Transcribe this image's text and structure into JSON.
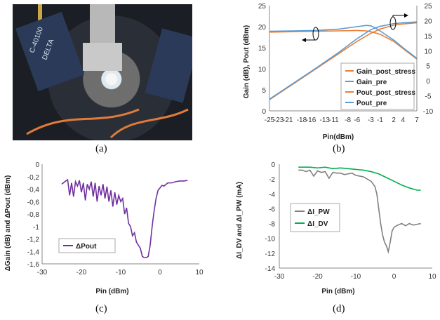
{
  "figure": {
    "captions": [
      "(a)",
      "(b)",
      "(c)",
      "(d)"
    ],
    "photo_label_1": "C-40100",
    "photo_label_2": "DELTA"
  },
  "colors": {
    "orange": "#ed7d31",
    "blue": "#5b9bd5",
    "purple": "#7030a0",
    "gray": "#808080",
    "green": "#00b050"
  },
  "chart_data": [
    {
      "panel": "b",
      "type": "line",
      "xlabel": "Pin(dBm)",
      "ylabel": "Gain (dB), Pout (dBm)",
      "x_ticks": [
        "-25",
        "-23",
        "-21",
        "-18",
        "-16",
        "-13",
        "-11",
        "-8",
        "-6",
        "-3",
        "-1",
        "2",
        "4",
        "7"
      ],
      "xlim": [
        -25,
        7
      ],
      "ylim_left": [
        0,
        25
      ],
      "ylim_right": [
        -10,
        25
      ],
      "left_ticks": [
        "0",
        "5",
        "10",
        "15",
        "20",
        "25"
      ],
      "right_ticks": [
        "-10",
        "-5",
        "0",
        "5",
        "10",
        "15",
        "20",
        "25"
      ],
      "series": [
        {
          "name": "Gain_post_stress",
          "axis": "left",
          "color": "orange",
          "x": [
            -25,
            -20,
            -15,
            -10,
            -6,
            -4,
            -3,
            -1,
            2,
            4,
            7
          ],
          "y": [
            18.7,
            18.8,
            18.9,
            19.0,
            19.1,
            19.0,
            18.8,
            18.2,
            16.5,
            14.8,
            12.3
          ]
        },
        {
          "name": "Gain_pre",
          "axis": "left",
          "color": "blue",
          "x": [
            -25,
            -20,
            -15,
            -10,
            -6,
            -4,
            -3,
            -2,
            -1,
            2,
            4,
            7
          ],
          "y": [
            18.9,
            19.0,
            19.1,
            19.4,
            20.0,
            20.3,
            20.2,
            19.7,
            19.0,
            16.8,
            15.0,
            12.5
          ]
        },
        {
          "name": "Pout_post_stress",
          "axis": "right",
          "color": "orange",
          "x": [
            -25,
            -20,
            -15,
            -10,
            -6,
            -3,
            -1,
            2,
            4,
            7
          ],
          "y": [
            -6.3,
            -1.2,
            3.9,
            9.0,
            13.1,
            15.8,
            17.2,
            18.5,
            18.9,
            19.3
          ]
        },
        {
          "name": "Pout_pre",
          "axis": "right",
          "color": "blue",
          "x": [
            -25,
            -20,
            -15,
            -10,
            -6,
            -3,
            -1,
            2,
            4,
            7
          ],
          "y": [
            -6.1,
            -1.0,
            4.1,
            9.4,
            14.0,
            17.0,
            18.1,
            19.0,
            19.3,
            19.6
          ]
        }
      ],
      "legend": "bottom-right"
    },
    {
      "panel": "c",
      "type": "line",
      "xlabel": "Pin (dBm)",
      "ylabel": "ΔGain (dB) and ΔPout (dBm)",
      "xlim": [
        -30,
        10
      ],
      "ylim": [
        -1.6,
        0
      ],
      "x_ticks": [
        "-30",
        "-20",
        "-10",
        "0",
        "10"
      ],
      "y_ticks": [
        "0",
        "-0,2",
        "-0,4",
        "-0,6",
        "-0,8",
        "-1",
        "-1,2",
        "-1,4",
        "-1,6"
      ],
      "series": [
        {
          "name": "ΔPout",
          "color": "purple",
          "x": [
            -25,
            -24,
            -23.5,
            -23,
            -22.5,
            -22,
            -21.5,
            -21,
            -20.5,
            -20,
            -19.5,
            -19,
            -18.5,
            -18,
            -17.5,
            -17,
            -16.5,
            -16,
            -15.5,
            -15,
            -14.5,
            -14,
            -13.5,
            -13,
            -12.5,
            -12,
            -11.5,
            -11,
            -10.5,
            -10,
            -9.5,
            -9,
            -8.5,
            -8,
            -7.5,
            -7,
            -6.5,
            -6,
            -5.5,
            -5,
            -4.5,
            -4,
            -3.5,
            -3,
            -2.5,
            -2,
            -1.5,
            -1,
            -0.5,
            0,
            0.5,
            1,
            2,
            3,
            4,
            5,
            6,
            7
          ],
          "y": [
            -0.32,
            -0.27,
            -0.25,
            -0.5,
            -0.3,
            -0.52,
            -0.28,
            -0.35,
            -0.26,
            -0.45,
            -0.3,
            -0.58,
            -0.32,
            -0.4,
            -0.28,
            -0.52,
            -0.3,
            -0.6,
            -0.35,
            -0.5,
            -0.32,
            -0.55,
            -0.36,
            -0.6,
            -0.42,
            -0.68,
            -0.45,
            -0.65,
            -0.5,
            -0.6,
            -0.55,
            -0.8,
            -0.7,
            -0.95,
            -1.0,
            -1.15,
            -1.1,
            -1.25,
            -1.3,
            -1.35,
            -1.48,
            -1.5,
            -1.5,
            -1.48,
            -1.3,
            -1.0,
            -0.75,
            -0.55,
            -0.42,
            -0.38,
            -0.34,
            -0.35,
            -0.3,
            -0.3,
            -0.28,
            -0.27,
            -0.27,
            -0.26
          ]
        }
      ],
      "legend": "bottom-left"
    },
    {
      "panel": "d",
      "type": "line",
      "xlabel": "Pin (dBm)",
      "ylabel": "ΔI_DV and ΔI_PW (mA)",
      "xlim": [
        -30,
        10
      ],
      "ylim": [
        -14,
        0
      ],
      "x_ticks": [
        "-30",
        "-20",
        "-10",
        "0",
        "10"
      ],
      "y_ticks": [
        "0",
        "-2",
        "-4",
        "-6",
        "-8",
        "-10",
        "-12",
        "-14"
      ],
      "series": [
        {
          "name": "ΔI_PW",
          "color": "gray",
          "x": [
            -25,
            -24,
            -23,
            -22,
            -21,
            -20,
            -19,
            -18,
            -17,
            -16,
            -15,
            -14,
            -13,
            -12,
            -11,
            -10,
            -9,
            -8,
            -7,
            -6,
            -5,
            -4.5,
            -4,
            -3.5,
            -3,
            -2.5,
            -2,
            -1.5,
            -1,
            -0.5,
            0,
            1,
            2,
            3,
            4,
            5,
            6,
            7
          ],
          "y": [
            -0.8,
            -0.8,
            -1.0,
            -0.8,
            -1.6,
            -0.9,
            -1.1,
            -1.0,
            -1.9,
            -1.1,
            -1.2,
            -1.2,
            -1.4,
            -1.3,
            -1.2,
            -1.5,
            -1.6,
            -1.7,
            -2.0,
            -2.3,
            -3.0,
            -4.0,
            -6.0,
            -8.0,
            -9.5,
            -10.5,
            -11.0,
            -11.8,
            -10.5,
            -9.0,
            -8.5,
            -8.2,
            -8.0,
            -8.3,
            -8.0,
            -8.2,
            -8.1,
            -8.0
          ]
        },
        {
          "name": "ΔI_DV",
          "color": "green",
          "x": [
            -25,
            -22,
            -20,
            -18,
            -16,
            -14,
            -12,
            -10,
            -8,
            -6,
            -4,
            -2,
            0,
            2,
            4,
            6,
            7
          ],
          "y": [
            -0.4,
            -0.4,
            -0.5,
            -0.4,
            -0.6,
            -0.5,
            -0.6,
            -0.7,
            -0.8,
            -1.0,
            -1.3,
            -1.8,
            -2.3,
            -2.8,
            -3.2,
            -3.5,
            -3.5
          ]
        }
      ],
      "legend": "middle-left"
    }
  ]
}
